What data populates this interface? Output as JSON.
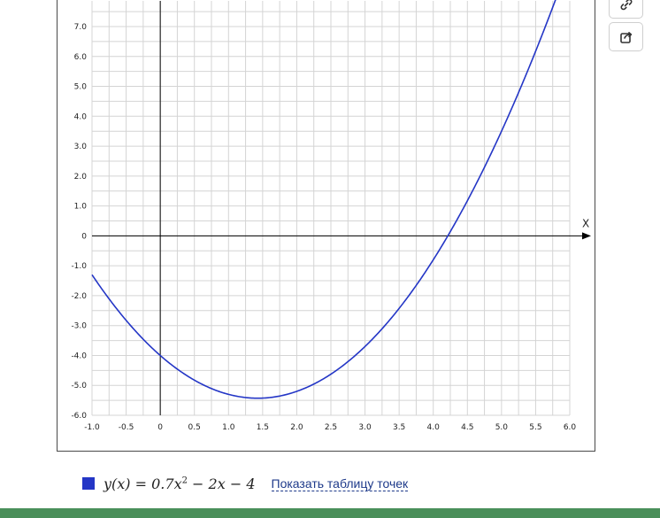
{
  "buttons": {
    "link_icon": "link-icon",
    "share_icon": "share-icon"
  },
  "legend": {
    "formula_prefix": "y(x) = 0.7x",
    "formula_power": "2",
    "formula_suffix": " − 2x − 4",
    "swatch_color": "#2436c6",
    "table_link": "Показать таблицу точек"
  },
  "footer_color": "#4a8f5a",
  "chart_data": {
    "type": "line",
    "xlabel": "X",
    "ylabel": "",
    "xlim": [
      -1.0,
      6.0
    ],
    "ylim": [
      -6.0,
      8.0
    ],
    "x_ticks": [
      "-1.0",
      "-0.5",
      "0",
      "0.5",
      "1.0",
      "1.5",
      "2.0",
      "2.5",
      "3.0",
      "3.5",
      "4.0",
      "4.5",
      "5.0",
      "5.5",
      "6.0"
    ],
    "y_ticks": [
      "7.0",
      "6.0",
      "5.0",
      "4.0",
      "3.0",
      "2.0",
      "1.0",
      "0",
      "-1.0",
      "-2.0",
      "-3.0",
      "-4.0",
      "-5.0",
      "-6.0"
    ],
    "grid": true,
    "series": [
      {
        "name": "y(x) = 0.7x² − 2x − 4",
        "color": "#2436c6",
        "formula": {
          "a": 0.7,
          "b": -2,
          "c": -4
        },
        "x": [
          -1.0,
          -0.5,
          0,
          0.5,
          1.0,
          1.43,
          2.0,
          2.5,
          3.0,
          3.5,
          4.0,
          4.22,
          4.5,
          5.0,
          5.5,
          5.85
        ],
        "y": [
          -1.3,
          -2.825,
          -4.0,
          -4.825,
          -5.3,
          -5.43,
          -5.2,
          -4.625,
          -3.7,
          -2.425,
          -0.8,
          0.0,
          1.175,
          3.5,
          6.175,
          8.26
        ]
      }
    ]
  }
}
